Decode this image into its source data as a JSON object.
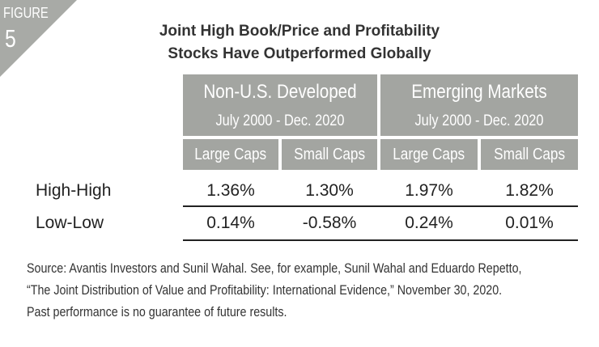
{
  "figure": {
    "label": "FIGURE",
    "number": "5"
  },
  "title": {
    "line1": "Joint High Book/Price and Profitability",
    "line2": "Stocks Have Outperformed Globally"
  },
  "table": {
    "groups": [
      {
        "name": "Non-U.S. Developed",
        "period": "July 2000 - Dec. 2020"
      },
      {
        "name": "Emerging Markets",
        "period": "July 2000 - Dec. 2020"
      }
    ],
    "columns": [
      "Large Caps",
      "Small Caps",
      "Large Caps",
      "Small Caps"
    ],
    "rows": [
      {
        "label": "High-High",
        "values": [
          "1.36%",
          "1.30%",
          "1.97%",
          "1.82%"
        ]
      },
      {
        "label": "Low-Low",
        "values": [
          "0.14%",
          "-0.58%",
          "0.24%",
          "0.01%"
        ]
      }
    ]
  },
  "source": {
    "line1": "Source: Avantis Investors and Sunil Wahal. See, for example, Sunil Wahal and Eduardo Repetto,",
    "line2": "“The Joint Distribution of Value and Profitability: International Evidence,” November 30, 2020.",
    "line3": "Past performance is no guarantee of future results."
  },
  "colors": {
    "header_gray": "#a3a5a1",
    "corner_gray": "#a8aaa6"
  }
}
